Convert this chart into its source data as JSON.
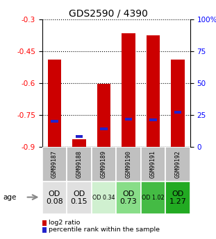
{
  "title": "GDS2590 / 4390",
  "samples": [
    "GSM99187",
    "GSM99188",
    "GSM99189",
    "GSM99190",
    "GSM99191",
    "GSM99192"
  ],
  "log2_ratios": [
    -0.49,
    -0.865,
    -0.605,
    -0.365,
    -0.375,
    -0.49
  ],
  "percentile_ranks": [
    20,
    8,
    14,
    22,
    21,
    27
  ],
  "ylim_left": [
    -0.9,
    -0.3
  ],
  "yticks_left": [
    -0.9,
    -0.75,
    -0.6,
    -0.45,
    -0.3
  ],
  "ylim_right": [
    0,
    100
  ],
  "yticks_right": [
    0,
    25,
    50,
    75,
    100
  ],
  "ytick_labels_right": [
    "0",
    "25",
    "50",
    "75",
    "100%"
  ],
  "bar_color": "#cc0000",
  "percentile_color": "#2222cc",
  "bar_width": 0.55,
  "od_values": [
    "OD\n0.08",
    "OD\n0.15",
    "OD 0.34",
    "OD\n0.73",
    "OD 1.02",
    "OD\n1.27"
  ],
  "od_colors": [
    "#e0e0e0",
    "#e0e0e0",
    "#d0f0d0",
    "#88dd88",
    "#44bb44",
    "#22aa22"
  ],
  "od_fontsize_large": [
    true,
    true,
    false,
    true,
    false,
    true
  ],
  "grid_linestyle": "dotted",
  "sample_label_bg": "#c0c0c0",
  "legend_red_label": "log2 ratio",
  "legend_blue_label": "percentile rank within the sample",
  "age_label": "age"
}
